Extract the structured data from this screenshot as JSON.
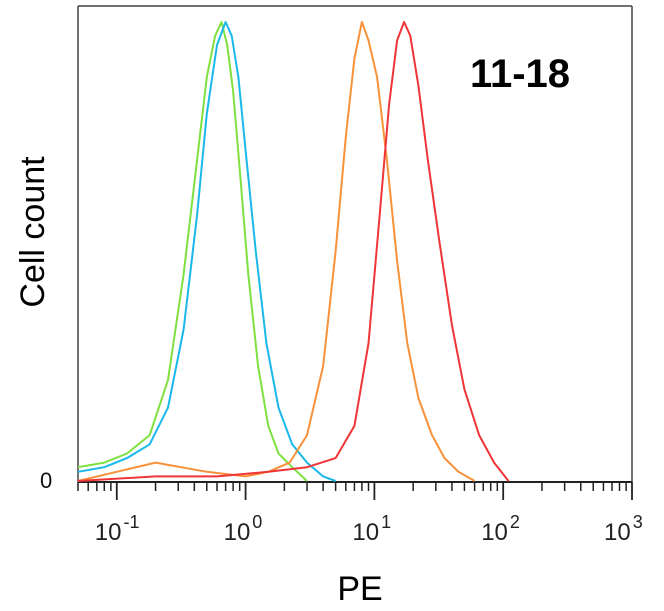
{
  "chart_data": {
    "type": "line",
    "title": "",
    "annotation": "11-18",
    "xlabel": "PE",
    "ylabel": "Cell count",
    "x_scale": "log",
    "xlim": [
      0.05,
      1000
    ],
    "ylim": [
      0,
      100
    ],
    "y_tick_label": "0",
    "x_ticks": [
      {
        "value": 0.1,
        "base": "10",
        "exp": "-1"
      },
      {
        "value": 1,
        "base": "10",
        "exp": "0"
      },
      {
        "value": 10,
        "base": "10",
        "exp": "1"
      },
      {
        "value": 100,
        "base": "10",
        "exp": "2"
      },
      {
        "value": 1000,
        "base": "10",
        "exp": "3"
      }
    ],
    "grid": false,
    "legend": "none",
    "series": [
      {
        "color": "#7fe040",
        "x": [
          0.05,
          0.08,
          0.12,
          0.18,
          0.25,
          0.33,
          0.42,
          0.5,
          0.58,
          0.65,
          0.72,
          0.8,
          0.9,
          1.05,
          1.25,
          1.5,
          1.8,
          2.3,
          3.0
        ],
        "y": [
          3,
          4,
          6,
          10,
          22,
          45,
          70,
          88,
          97,
          100,
          95,
          85,
          68,
          45,
          25,
          12,
          6,
          3,
          0
        ]
      },
      {
        "color": "#1ab8ea",
        "x": [
          0.05,
          0.08,
          0.12,
          0.18,
          0.25,
          0.33,
          0.42,
          0.5,
          0.6,
          0.7,
          0.78,
          0.88,
          1.0,
          1.2,
          1.45,
          1.8,
          2.3,
          3.0,
          4.0,
          5.0
        ],
        "y": [
          2,
          3,
          5,
          8,
          16,
          33,
          58,
          80,
          95,
          100,
          97,
          88,
          72,
          50,
          30,
          16,
          8,
          4,
          1,
          0
        ]
      },
      {
        "color": "#f8923a",
        "x": [
          0.05,
          0.1,
          0.2,
          0.5,
          1.0,
          1.5,
          2.2,
          3.0,
          4.0,
          5.0,
          6.0,
          7.0,
          8.0,
          9.0,
          10.5,
          12.5,
          15.0,
          18.0,
          22.0,
          28.0,
          35.0,
          45.0,
          60.0
        ],
        "y": [
          0,
          2,
          4,
          2,
          1,
          2,
          4,
          10,
          25,
          50,
          75,
          92,
          100,
          96,
          88,
          70,
          48,
          30,
          18,
          10,
          5,
          2,
          0
        ]
      },
      {
        "color": "#ef3537",
        "x": [
          0.05,
          0.2,
          0.6,
          1.5,
          3.0,
          5.0,
          7.0,
          9.0,
          11.0,
          13.0,
          15.0,
          17.0,
          19.0,
          22.0,
          26.0,
          32.0,
          40.0,
          50.0,
          65.0,
          85.0,
          110.0
        ],
        "y": [
          0,
          1,
          1,
          2,
          3,
          5,
          12,
          30,
          58,
          82,
          96,
          100,
          97,
          86,
          70,
          52,
          34,
          20,
          10,
          4,
          0
        ]
      }
    ]
  }
}
